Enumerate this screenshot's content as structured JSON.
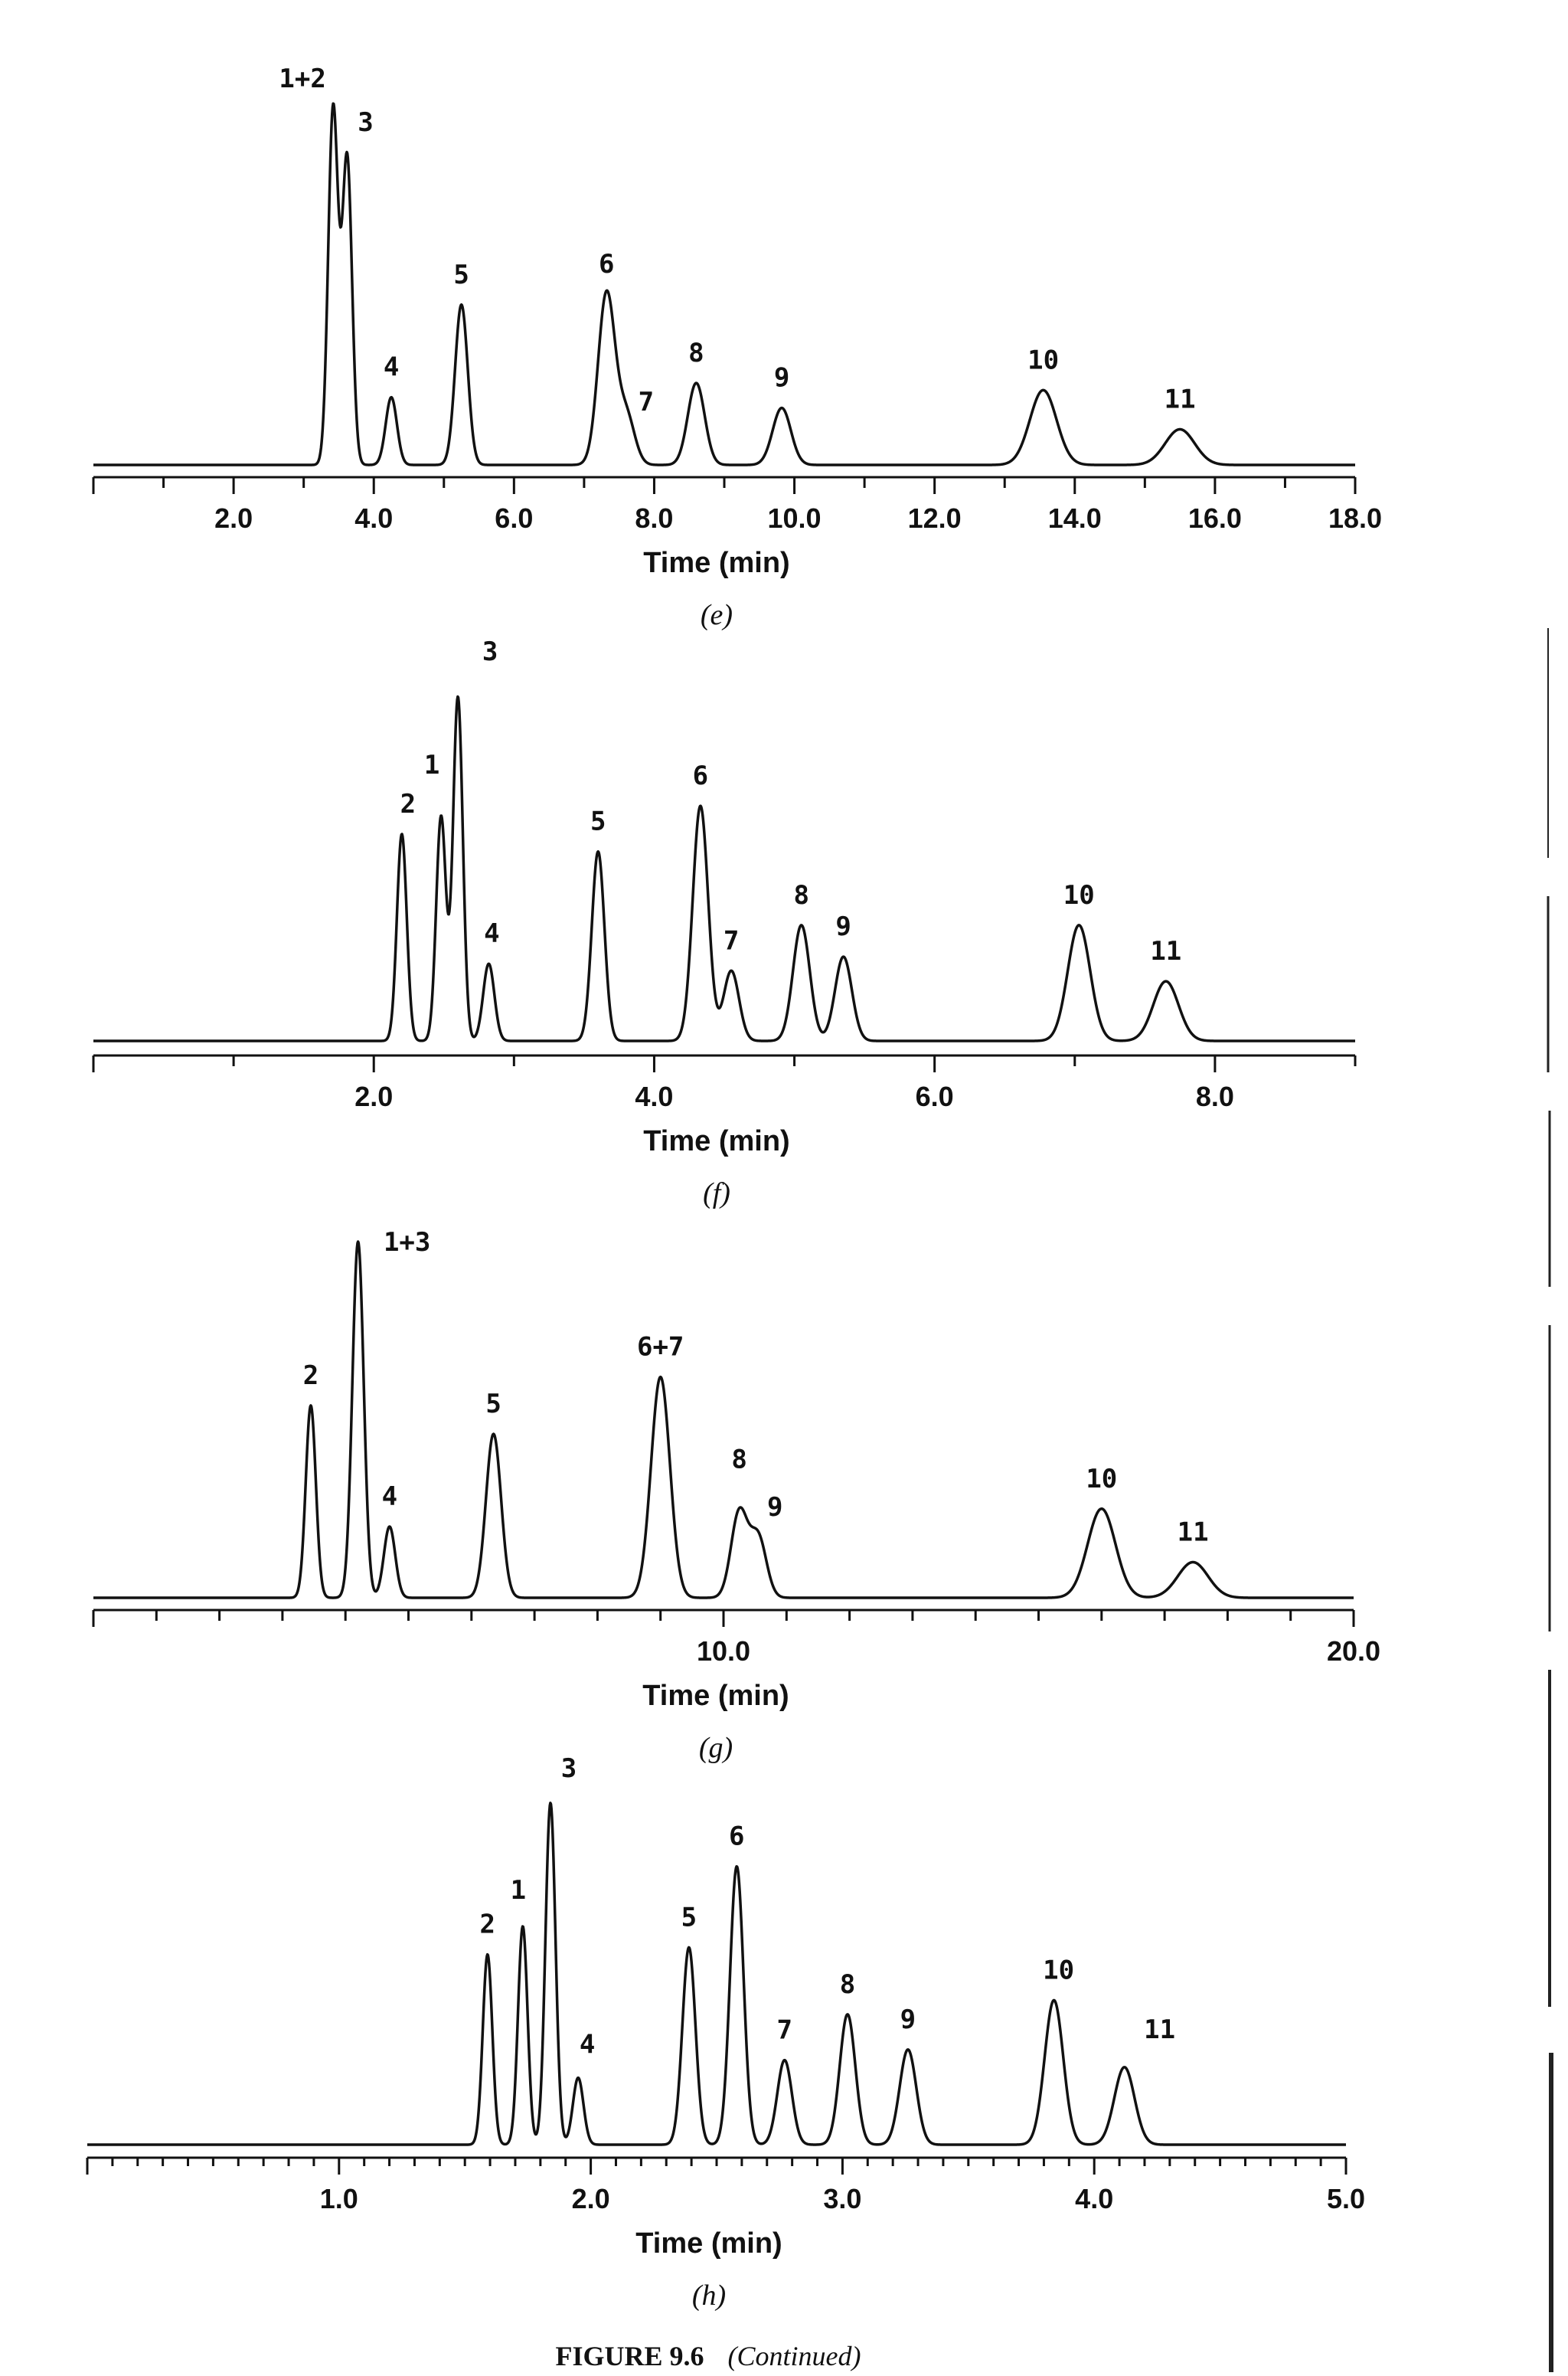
{
  "figure_caption": {
    "label": "FIGURE 9.6",
    "note": "(Continued)"
  },
  "chart_data": [
    {
      "type": "line",
      "panel": "(e)",
      "xlabel": "Time (min)",
      "ylabel": "",
      "xlim": [
        0,
        18.0
      ],
      "ylim": [
        0,
        1.0
      ],
      "x_ticks": [
        "2.0",
        "4.0",
        "6.0",
        "8.0",
        "10.0",
        "12.0",
        "14.0",
        "16.0",
        "18.0"
      ],
      "minor_tick_step": 1.0,
      "grid": false,
      "peaks": [
        {
          "label": "1+2",
          "t": 3.42,
          "height": 1.0,
          "width": 0.07
        },
        {
          "label": "3",
          "t": 3.62,
          "height": 0.86,
          "width": 0.07
        },
        {
          "label": "4",
          "t": 4.25,
          "height": 0.19,
          "width": 0.08
        },
        {
          "label": "5",
          "t": 5.25,
          "height": 0.45,
          "width": 0.09
        },
        {
          "label": "6",
          "t": 7.32,
          "height": 0.48,
          "width": 0.12
        },
        {
          "label": "7",
          "t": 7.6,
          "height": 0.14,
          "width": 0.12
        },
        {
          "label": "8",
          "t": 8.6,
          "height": 0.23,
          "width": 0.12
        },
        {
          "label": "9",
          "t": 9.82,
          "height": 0.16,
          "width": 0.13
        },
        {
          "label": "10",
          "t": 13.55,
          "height": 0.21,
          "width": 0.19
        },
        {
          "label": "11",
          "t": 15.5,
          "height": 0.1,
          "width": 0.21
        }
      ]
    },
    {
      "type": "line",
      "panel": "(f)",
      "xlabel": "Time (min)",
      "ylabel": "",
      "xlim": [
        0,
        9.0
      ],
      "ylim": [
        0,
        1.0
      ],
      "x_ticks": [
        "2.0",
        "4.0",
        "6.0",
        "8.0"
      ],
      "minor_tick_step": 1.0,
      "grid": false,
      "peaks": [
        {
          "label": "2",
          "t": 2.2,
          "height": 0.59,
          "width": 0.035
        },
        {
          "label": "1",
          "t": 2.48,
          "height": 0.64,
          "width": 0.035
        },
        {
          "label": "3",
          "t": 2.6,
          "height": 0.98,
          "width": 0.035
        },
        {
          "label": "4",
          "t": 2.82,
          "height": 0.22,
          "width": 0.04
        },
        {
          "label": "5",
          "t": 3.6,
          "height": 0.54,
          "width": 0.045
        },
        {
          "label": "6",
          "t": 4.33,
          "height": 0.67,
          "width": 0.055
        },
        {
          "label": "7",
          "t": 4.55,
          "height": 0.2,
          "width": 0.055
        },
        {
          "label": "8",
          "t": 5.05,
          "height": 0.33,
          "width": 0.06
        },
        {
          "label": "9",
          "t": 5.35,
          "height": 0.24,
          "width": 0.06
        },
        {
          "label": "10",
          "t": 7.03,
          "height": 0.33,
          "width": 0.08
        },
        {
          "label": "11",
          "t": 7.65,
          "height": 0.17,
          "width": 0.09
        }
      ]
    },
    {
      "type": "line",
      "panel": "(g)",
      "xlabel": "Time (min)",
      "ylabel": "",
      "xlim": [
        0,
        20.0
      ],
      "ylim": [
        0,
        1.0
      ],
      "x_ticks": [
        "10.0",
        "20.0"
      ],
      "minor_tick_step": 1.0,
      "grid": false,
      "peaks": [
        {
          "label": "2",
          "t": 3.45,
          "height": 0.54,
          "width": 0.08
        },
        {
          "label": "1+3",
          "t": 4.2,
          "height": 1.0,
          "width": 0.09
        },
        {
          "label": "4",
          "t": 4.7,
          "height": 0.2,
          "width": 0.09
        },
        {
          "label": "5",
          "t": 6.35,
          "height": 0.46,
          "width": 0.12
        },
        {
          "label": "6+7",
          "t": 9.0,
          "height": 0.62,
          "width": 0.15
        },
        {
          "label": "8",
          "t": 10.25,
          "height": 0.24,
          "width": 0.13
        },
        {
          "label": "9",
          "t": 10.55,
          "height": 0.17,
          "width": 0.13
        },
        {
          "label": "10",
          "t": 16.0,
          "height": 0.25,
          "width": 0.22
        },
        {
          "label": "11",
          "t": 17.45,
          "height": 0.1,
          "width": 0.24
        }
      ]
    },
    {
      "type": "line",
      "panel": "(h)",
      "xlabel": "Time (min)",
      "ylabel": "",
      "xlim": [
        0,
        5.0
      ],
      "ylim": [
        0,
        1.0
      ],
      "x_ticks": [
        "1.0",
        "2.0",
        "3.0",
        "4.0",
        "5.0"
      ],
      "minor_tick_step": 0.1,
      "grid": false,
      "peaks": [
        {
          "label": "2",
          "t": 1.59,
          "height": 0.54,
          "width": 0.019
        },
        {
          "label": "1",
          "t": 1.73,
          "height": 0.62,
          "width": 0.019
        },
        {
          "label": "3",
          "t": 1.84,
          "height": 0.97,
          "width": 0.02
        },
        {
          "label": "4",
          "t": 1.95,
          "height": 0.19,
          "width": 0.021
        },
        {
          "label": "5",
          "t": 2.39,
          "height": 0.56,
          "width": 0.026
        },
        {
          "label": "6",
          "t": 2.58,
          "height": 0.79,
          "width": 0.027
        },
        {
          "label": "7",
          "t": 2.77,
          "height": 0.24,
          "width": 0.029
        },
        {
          "label": "8",
          "t": 3.02,
          "height": 0.37,
          "width": 0.031
        },
        {
          "label": "9",
          "t": 3.26,
          "height": 0.27,
          "width": 0.033
        },
        {
          "label": "10",
          "t": 3.84,
          "height": 0.41,
          "width": 0.037
        },
        {
          "label": "11",
          "t": 4.12,
          "height": 0.22,
          "width": 0.04
        }
      ]
    }
  ]
}
